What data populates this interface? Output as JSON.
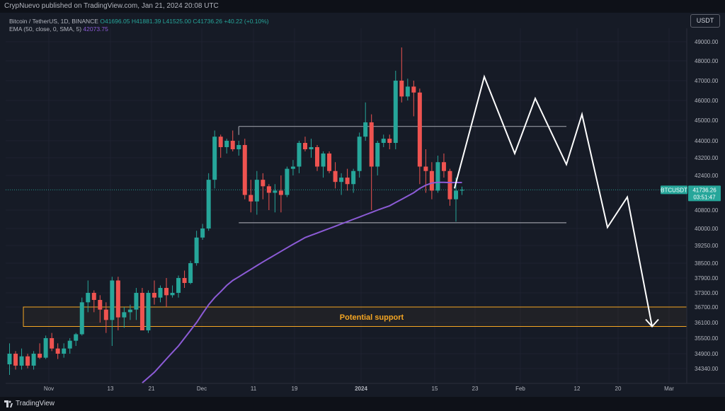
{
  "header": {
    "published": "CrypNuevo published on TradingView.com, Jan 21, 2024 20:08 UTC"
  },
  "legend": {
    "symbol": "Bitcoin / TetherUS, 1D, BINANCE",
    "open": "O41696.05",
    "high": "H41881.39",
    "low": "L41525.00",
    "close": "C41736.26",
    "change": "+40.22 (+0.10%)",
    "ema_label": "EMA (50, close, 0, SMA, 5)",
    "ema_value": "42073.75"
  },
  "currency_button": "USDT",
  "footer": {
    "brand": "TradingView"
  },
  "colors": {
    "up": "#26a69a",
    "down": "#ef5350",
    "ema": "#8c5bd6",
    "support": "#f5a623",
    "range": "#9598a1",
    "projection": "#ffffff"
  },
  "chart_data": {
    "type": "candlestick",
    "symbol": "BTCUSDT",
    "timeframe": "1D",
    "y_axis_labels": [
      "49000.00",
      "48000.00",
      "47000.00",
      "46000.00",
      "45000.00",
      "44000.00",
      "43200.00",
      "42400.00",
      "40800.00",
      "40000.00",
      "39250.00",
      "38500.00",
      "37900.00",
      "37300.00",
      "36700.00",
      "36100.00",
      "35500.00",
      "34900.00",
      "34340.00"
    ],
    "x_axis_labels": [
      "Nov",
      "13",
      "21",
      "Dec",
      "11",
      "19",
      "2024",
      "15",
      "23",
      "Feb",
      "12",
      "20",
      "Mar"
    ],
    "last_price": "41736.26",
    "countdown": "03:51:47",
    "price_tag_symbol": "BTCUSDT",
    "ema_last": 42073.75,
    "candles": [
      {
        "o": 34500,
        "h": 35300,
        "l": 34100,
        "c": 34900
      },
      {
        "o": 34900,
        "h": 35000,
        "l": 34300,
        "c": 34450
      },
      {
        "o": 34450,
        "h": 35100,
        "l": 34300,
        "c": 34800
      },
      {
        "o": 34800,
        "h": 34900,
        "l": 34350,
        "c": 34450
      },
      {
        "o": 34450,
        "h": 35000,
        "l": 34300,
        "c": 34900
      },
      {
        "o": 34900,
        "h": 35300,
        "l": 34700,
        "c": 34750
      },
      {
        "o": 34750,
        "h": 35600,
        "l": 34700,
        "c": 35500
      },
      {
        "o": 35500,
        "h": 35700,
        "l": 35000,
        "c": 35100
      },
      {
        "o": 35100,
        "h": 35300,
        "l": 34700,
        "c": 34900
      },
      {
        "o": 34900,
        "h": 35300,
        "l": 34750,
        "c": 35100
      },
      {
        "o": 35100,
        "h": 35500,
        "l": 34900,
        "c": 35400
      },
      {
        "o": 35400,
        "h": 35700,
        "l": 35200,
        "c": 35650
      },
      {
        "o": 35650,
        "h": 37100,
        "l": 35600,
        "c": 36900
      },
      {
        "o": 36900,
        "h": 37800,
        "l": 36500,
        "c": 37300
      },
      {
        "o": 37300,
        "h": 37400,
        "l": 36500,
        "c": 37000
      },
      {
        "o": 37000,
        "h": 37200,
        "l": 36100,
        "c": 36600
      },
      {
        "o": 36600,
        "h": 36900,
        "l": 35700,
        "c": 36200
      },
      {
        "o": 36200,
        "h": 37950,
        "l": 35200,
        "c": 37800
      },
      {
        "o": 37800,
        "h": 37950,
        "l": 35800,
        "c": 36300
      },
      {
        "o": 36300,
        "h": 36700,
        "l": 35900,
        "c": 36500
      },
      {
        "o": 36500,
        "h": 36800,
        "l": 36200,
        "c": 36600
      },
      {
        "o": 36600,
        "h": 37500,
        "l": 36200,
        "c": 37300
      },
      {
        "o": 37300,
        "h": 37500,
        "l": 35800,
        "c": 35800
      },
      {
        "o": 35800,
        "h": 37400,
        "l": 35700,
        "c": 37300
      },
      {
        "o": 37300,
        "h": 37800,
        "l": 36800,
        "c": 37100
      },
      {
        "o": 37100,
        "h": 37600,
        "l": 36900,
        "c": 37500
      },
      {
        "o": 37500,
        "h": 37900,
        "l": 36700,
        "c": 37200
      },
      {
        "o": 37200,
        "h": 37600,
        "l": 37100,
        "c": 37300
      },
      {
        "o": 37300,
        "h": 38000,
        "l": 37100,
        "c": 37900
      },
      {
        "o": 37900,
        "h": 38200,
        "l": 37500,
        "c": 37700
      },
      {
        "o": 37700,
        "h": 38600,
        "l": 37650,
        "c": 38500
      },
      {
        "o": 38500,
        "h": 39900,
        "l": 38400,
        "c": 39600
      },
      {
        "o": 39600,
        "h": 40200,
        "l": 39500,
        "c": 40000
      },
      {
        "o": 40000,
        "h": 42500,
        "l": 39900,
        "c": 42200
      },
      {
        "o": 42200,
        "h": 44500,
        "l": 41800,
        "c": 44200
      },
      {
        "o": 44200,
        "h": 44300,
        "l": 43200,
        "c": 43700
      },
      {
        "o": 43700,
        "h": 44100,
        "l": 43400,
        "c": 44000
      },
      {
        "o": 44000,
        "h": 44500,
        "l": 43500,
        "c": 43600
      },
      {
        "o": 43600,
        "h": 44000,
        "l": 43300,
        "c": 43800
      },
      {
        "o": 43800,
        "h": 44100,
        "l": 41300,
        "c": 41500
      },
      {
        "o": 41500,
        "h": 42200,
        "l": 40700,
        "c": 41200
      },
      {
        "o": 41200,
        "h": 42600,
        "l": 40600,
        "c": 42200
      },
      {
        "o": 42200,
        "h": 42500,
        "l": 41300,
        "c": 41900
      },
      {
        "o": 41900,
        "h": 42000,
        "l": 40800,
        "c": 41600
      },
      {
        "o": 41600,
        "h": 42000,
        "l": 40700,
        "c": 41700
      },
      {
        "o": 41700,
        "h": 42400,
        "l": 40700,
        "c": 41500
      },
      {
        "o": 41500,
        "h": 42800,
        "l": 41400,
        "c": 42700
      },
      {
        "o": 42700,
        "h": 43100,
        "l": 42400,
        "c": 42800
      },
      {
        "o": 42800,
        "h": 44000,
        "l": 42500,
        "c": 43900
      },
      {
        "o": 43900,
        "h": 44200,
        "l": 43500,
        "c": 43600
      },
      {
        "o": 43600,
        "h": 44100,
        "l": 43200,
        "c": 43700
      },
      {
        "o": 43700,
        "h": 43800,
        "l": 42600,
        "c": 42800
      },
      {
        "o": 42800,
        "h": 43500,
        "l": 42300,
        "c": 43400
      },
      {
        "o": 43400,
        "h": 43500,
        "l": 42500,
        "c": 42600
      },
      {
        "o": 42600,
        "h": 43000,
        "l": 41800,
        "c": 42100
      },
      {
        "o": 42100,
        "h": 42500,
        "l": 41500,
        "c": 42300
      },
      {
        "o": 42300,
        "h": 42700,
        "l": 41700,
        "c": 42000
      },
      {
        "o": 42000,
        "h": 42700,
        "l": 41600,
        "c": 42600
      },
      {
        "o": 42600,
        "h": 44400,
        "l": 42300,
        "c": 44200
      },
      {
        "o": 44200,
        "h": 45900,
        "l": 44000,
        "c": 44900
      },
      {
        "o": 44900,
        "h": 45300,
        "l": 40800,
        "c": 42800
      },
      {
        "o": 42800,
        "h": 44000,
        "l": 42400,
        "c": 43900
      },
      {
        "o": 43900,
        "h": 44300,
        "l": 43700,
        "c": 44100
      },
      {
        "o": 44100,
        "h": 44300,
        "l": 43600,
        "c": 43900
      },
      {
        "o": 43900,
        "h": 47500,
        "l": 43600,
        "c": 47000
      },
      {
        "o": 47000,
        "h": 48700,
        "l": 45900,
        "c": 46200
      },
      {
        "o": 46200,
        "h": 47100,
        "l": 46000,
        "c": 46700
      },
      {
        "o": 46700,
        "h": 47000,
        "l": 45200,
        "c": 46400
      },
      {
        "o": 46400,
        "h": 46600,
        "l": 42000,
        "c": 42800
      },
      {
        "o": 42800,
        "h": 43600,
        "l": 41600,
        "c": 42600
      },
      {
        "o": 42600,
        "h": 43000,
        "l": 41300,
        "c": 41700
      },
      {
        "o": 41700,
        "h": 43300,
        "l": 41600,
        "c": 43000
      },
      {
        "o": 43000,
        "h": 43400,
        "l": 42300,
        "c": 42600
      },
      {
        "o": 42600,
        "h": 42700,
        "l": 41000,
        "c": 41300
      },
      {
        "o": 41300,
        "h": 42300,
        "l": 40300,
        "c": 41700
      },
      {
        "o": 41700,
        "h": 41880,
        "l": 41500,
        "c": 41740
      }
    ],
    "ema50": {
      "start_candle": 22,
      "values": [
        33800,
        34000,
        34200,
        34450,
        34700,
        34950,
        35200,
        35500,
        35800,
        36100,
        36450,
        36800,
        37100,
        37350,
        37600,
        37800,
        37950,
        38100,
        38250,
        38400,
        38550,
        38700,
        38850,
        39000,
        39150,
        39300,
        39450,
        39600,
        39700,
        39800,
        39900,
        40000,
        40100,
        40200,
        40300,
        40400,
        40500,
        40600,
        40700,
        40800,
        40900,
        41000,
        41150,
        41300,
        41450,
        41600,
        41800,
        41950,
        42050,
        42080,
        42080,
        42070,
        42075,
        42073.75
      ]
    },
    "range_box": {
      "top": 44700,
      "bottom": 40250,
      "from_candle": 38,
      "to_date": "Feb 10"
    },
    "support_zone": {
      "label": "Potential support",
      "top": 36700,
      "bottom": 35950
    },
    "projection_path": [
      {
        "date": "Jan 20",
        "price": 41800
      },
      {
        "date": "Jan 24",
        "price": 47200
      },
      {
        "date": "Jan 31",
        "price": 43400
      },
      {
        "date": "Feb 4",
        "price": 46100
      },
      {
        "date": "Feb 10",
        "price": 42900
      },
      {
        "date": "Feb 14",
        "price": 45300
      },
      {
        "date": "Feb 20",
        "price": 40050
      },
      {
        "date": "Feb 24",
        "price": 41400
      },
      {
        "date": "Mar 2",
        "price": 35950
      }
    ]
  }
}
